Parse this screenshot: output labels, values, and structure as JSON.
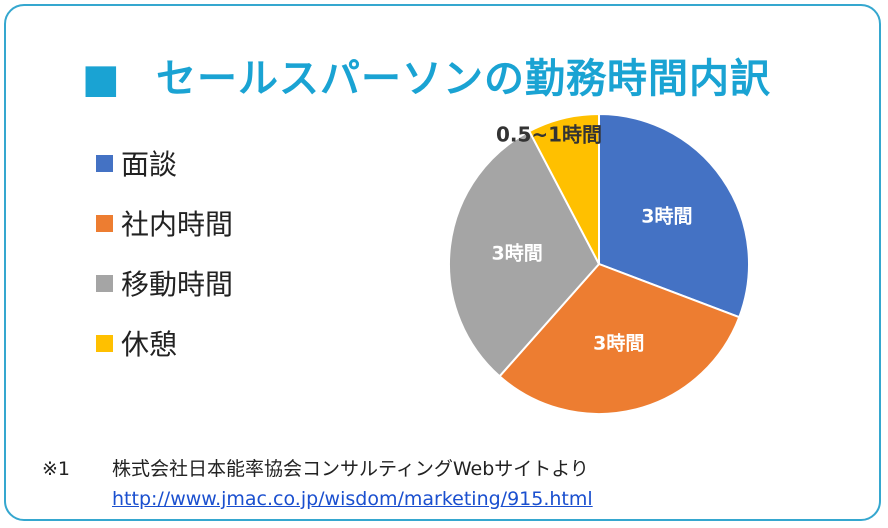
{
  "title": "セールスパーソンの勤務時間内訳",
  "title_bullet": "■",
  "colors": {
    "accent": "#1aa3d3",
    "border": "#35a7cf",
    "link": "#1a4fcf"
  },
  "chart_data": {
    "type": "pie",
    "categories": [
      "面談",
      "社内時間",
      "移動時間",
      "休憩"
    ],
    "values": [
      3,
      3,
      3,
      0.75
    ],
    "data_labels": [
      "3時間",
      "3時間",
      "3時間",
      "0.5~1時間"
    ],
    "colors": [
      "#4472c4",
      "#ed7d31",
      "#a5a5a5",
      "#ffc000"
    ],
    "title": "",
    "legend_position": "left"
  },
  "legend": [
    {
      "label": "面談"
    },
    {
      "label": "社内時間"
    },
    {
      "label": "移動時間"
    },
    {
      "label": "休憩"
    }
  ],
  "source": {
    "note_mark": "※1",
    "text": "株式会社日本能率協会コンサルティングWebサイトより",
    "url": "http://www.jmac.co.jp/wisdom/marketing/915.html"
  }
}
